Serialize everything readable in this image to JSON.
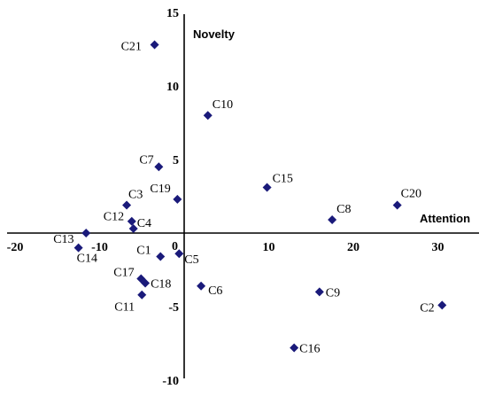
{
  "chart_data": {
    "type": "scatter",
    "title": "",
    "xlabel": "Attention",
    "ylabel": "Novelty",
    "xlim": [
      -20,
      32
    ],
    "ylim": [
      -10,
      15
    ],
    "x_ticks": [
      -20,
      -10,
      0,
      10,
      20,
      30
    ],
    "x_tick_labels": [
      "-20",
      "-10",
      "0",
      "10",
      "20",
      "30"
    ],
    "y_ticks": [
      -10,
      -5,
      5,
      10,
      15
    ],
    "y_tick_labels": [
      "-10",
      "-5",
      "5",
      "10",
      "15"
    ],
    "origin_label": "0",
    "grid": false,
    "marker": "diamond",
    "marker_color": "#1a1a7a",
    "points": [
      {
        "label": "C21",
        "x": -3.5,
        "y": 12.8
      },
      {
        "label": "C10",
        "x": 2.8,
        "y": 8.0
      },
      {
        "label": "C7",
        "x": -3.0,
        "y": 4.5
      },
      {
        "label": "C19",
        "x": -0.8,
        "y": 2.3
      },
      {
        "label": "C15",
        "x": 9.8,
        "y": 3.1
      },
      {
        "label": "C3",
        "x": -6.8,
        "y": 1.9
      },
      {
        "label": "C12",
        "x": -6.2,
        "y": 0.8
      },
      {
        "label": "C4",
        "x": -6.0,
        "y": 0.3
      },
      {
        "label": "C8",
        "x": 17.5,
        "y": 0.9
      },
      {
        "label": "C20",
        "x": 25.2,
        "y": 1.9
      },
      {
        "label": "C13",
        "x": -11.6,
        "y": 0.0
      },
      {
        "label": "C14",
        "x": -12.5,
        "y": -1.0
      },
      {
        "label": "C1",
        "x": -2.8,
        "y": -1.6
      },
      {
        "label": "C5",
        "x": -0.6,
        "y": -1.4
      },
      {
        "label": "C17",
        "x": -5.1,
        "y": -3.1
      },
      {
        "label": "C18",
        "x": -4.6,
        "y": -3.4
      },
      {
        "label": "C6",
        "x": 2.0,
        "y": -3.6
      },
      {
        "label": "C11",
        "x": -5.0,
        "y": -4.2
      },
      {
        "label": "C9",
        "x": 16.0,
        "y": -4.0
      },
      {
        "label": "C2",
        "x": 30.5,
        "y": -4.9
      },
      {
        "label": "C16",
        "x": 13.0,
        "y": -7.8
      }
    ]
  }
}
